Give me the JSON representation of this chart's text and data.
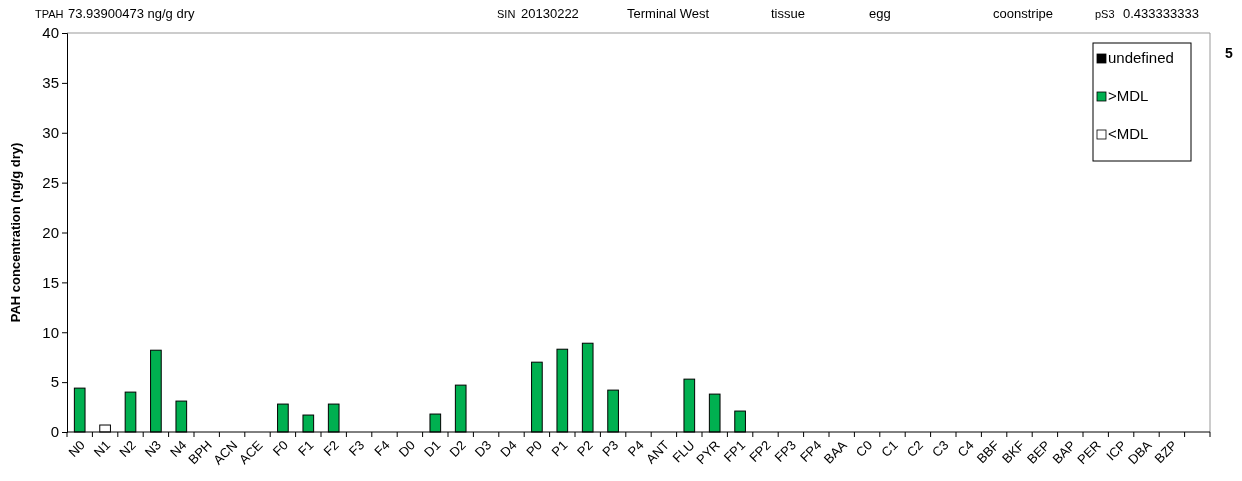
{
  "chart_data": {
    "type": "bar",
    "ylabel": "PAH concentration (ng/g dry)",
    "categories": [
      "N0",
      "N1",
      "N2",
      "N3",
      "N4",
      "BPH",
      "ACN",
      "ACE",
      "F0",
      "F1",
      "F2",
      "F3",
      "F4",
      "D0",
      "D1",
      "D2",
      "D3",
      "D4",
      "P0",
      "P1",
      "P2",
      "P3",
      "P4",
      "ANT",
      "FLU",
      "PYR",
      "FP1",
      "FP2",
      "FP3",
      "FP4",
      "BAA",
      "C0",
      "C1",
      "C2",
      "C3",
      "C4",
      "BBF",
      "BKF",
      "BEP",
      "BAP",
      "PER",
      "ICP",
      "DBA",
      "BZP",
      null
    ],
    "series": [
      {
        "name": "undefined",
        "color": "#000000",
        "values": [
          null,
          null,
          null,
          null,
          null,
          null,
          null,
          null,
          null,
          null,
          null,
          null,
          null,
          null,
          null,
          null,
          null,
          null,
          null,
          null,
          null,
          null,
          null,
          null,
          null,
          null,
          null,
          null,
          null,
          null,
          null,
          null,
          null,
          null,
          null,
          null,
          null,
          null,
          null,
          null,
          null,
          null,
          null,
          null,
          null
        ]
      },
      {
        "name": ">MDL",
        "color": "#00b050",
        "values": [
          4.4,
          null,
          4.0,
          8.2,
          3.1,
          null,
          null,
          null,
          2.8,
          1.7,
          2.8,
          null,
          null,
          null,
          1.8,
          4.7,
          null,
          null,
          7.0,
          8.3,
          8.9,
          4.2,
          null,
          null,
          5.3,
          3.8,
          2.1,
          null,
          null,
          null,
          null,
          null,
          null,
          null,
          null,
          null,
          null,
          null,
          null,
          null,
          null,
          null,
          null,
          null,
          null
        ]
      },
      {
        "name": "<MDL",
        "color": "#ffffff",
        "values": [
          null,
          0.7,
          null,
          null,
          null,
          null,
          null,
          null,
          null,
          null,
          null,
          null,
          null,
          null,
          null,
          null,
          null,
          null,
          null,
          null,
          null,
          null,
          null,
          null,
          null,
          null,
          null,
          null,
          null,
          null,
          null,
          null,
          null,
          null,
          null,
          null,
          null,
          null,
          null,
          null,
          null,
          null,
          null,
          null,
          null
        ]
      }
    ],
    "ylim": [
      0,
      40
    ],
    "yticks": [
      0,
      5,
      10,
      15,
      20,
      25,
      30,
      35,
      40
    ],
    "grid": false,
    "legend": "top right",
    "annotations": [
      "TPAH",
      "73.93900473  ng/g dry",
      "SIN",
      "20130222",
      "Terminal West",
      "tissue",
      "egg",
      "coonstripe",
      "pS3",
      "0.433333333",
      "5"
    ]
  }
}
